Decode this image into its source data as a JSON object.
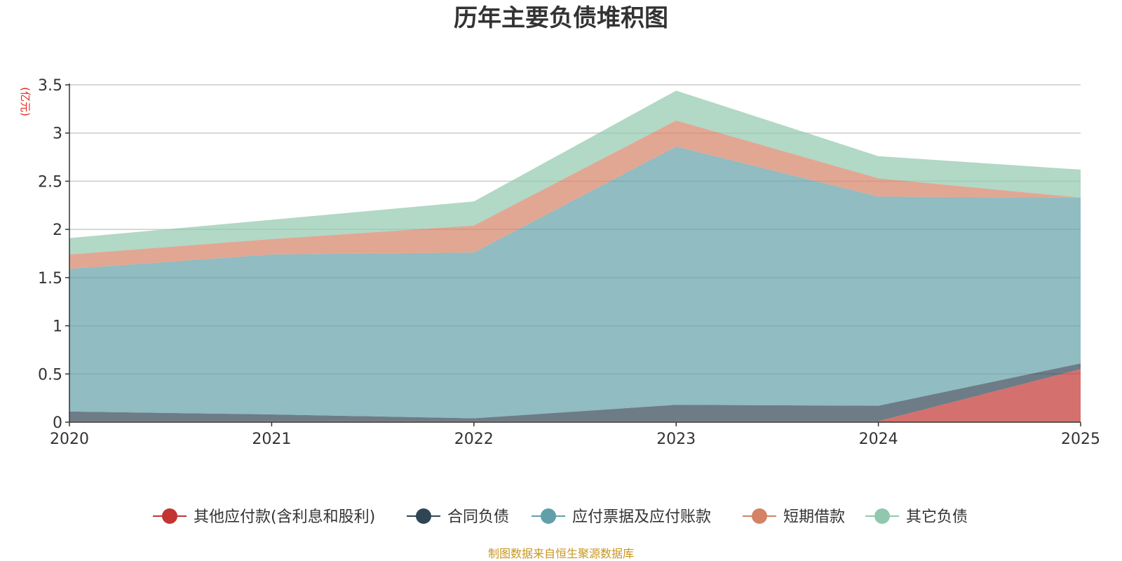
{
  "chart_data": {
    "type": "area",
    "stacked": true,
    "title": "历年主要负债堆积图",
    "unit_label": "(亿元)",
    "source": "制图数据来自恒生聚源数据库",
    "categories": [
      "2020",
      "2021",
      "2022",
      "2023",
      "2024",
      "2025"
    ],
    "y_ticks": [
      "0",
      "0.5",
      "1",
      "1.5",
      "2",
      "2.5",
      "3",
      "3.5"
    ],
    "ylim": [
      0,
      3.5
    ],
    "grid": true,
    "legend_position": "bottom",
    "series": [
      {
        "name": "其他应付款(含利息和股利)",
        "color": "#c23531",
        "values": [
          0.01,
          0.01,
          0.01,
          0.01,
          0.01,
          0.55
        ]
      },
      {
        "name": "合同负债",
        "color": "#2f4554",
        "values": [
          0.1,
          0.07,
          0.03,
          0.17,
          0.16,
          0.06
        ]
      },
      {
        "name": "应付票据及应付账款",
        "color": "#61a0a8",
        "values": [
          1.48,
          1.66,
          1.72,
          2.68,
          2.17,
          1.72
        ]
      },
      {
        "name": "短期借款",
        "color": "#d48265",
        "values": [
          0.15,
          0.16,
          0.28,
          0.27,
          0.19,
          0.0
        ]
      },
      {
        "name": "其它负债",
        "color": "#91c7ae",
        "values": [
          0.17,
          0.2,
          0.25,
          0.31,
          0.23,
          0.29
        ]
      }
    ]
  }
}
